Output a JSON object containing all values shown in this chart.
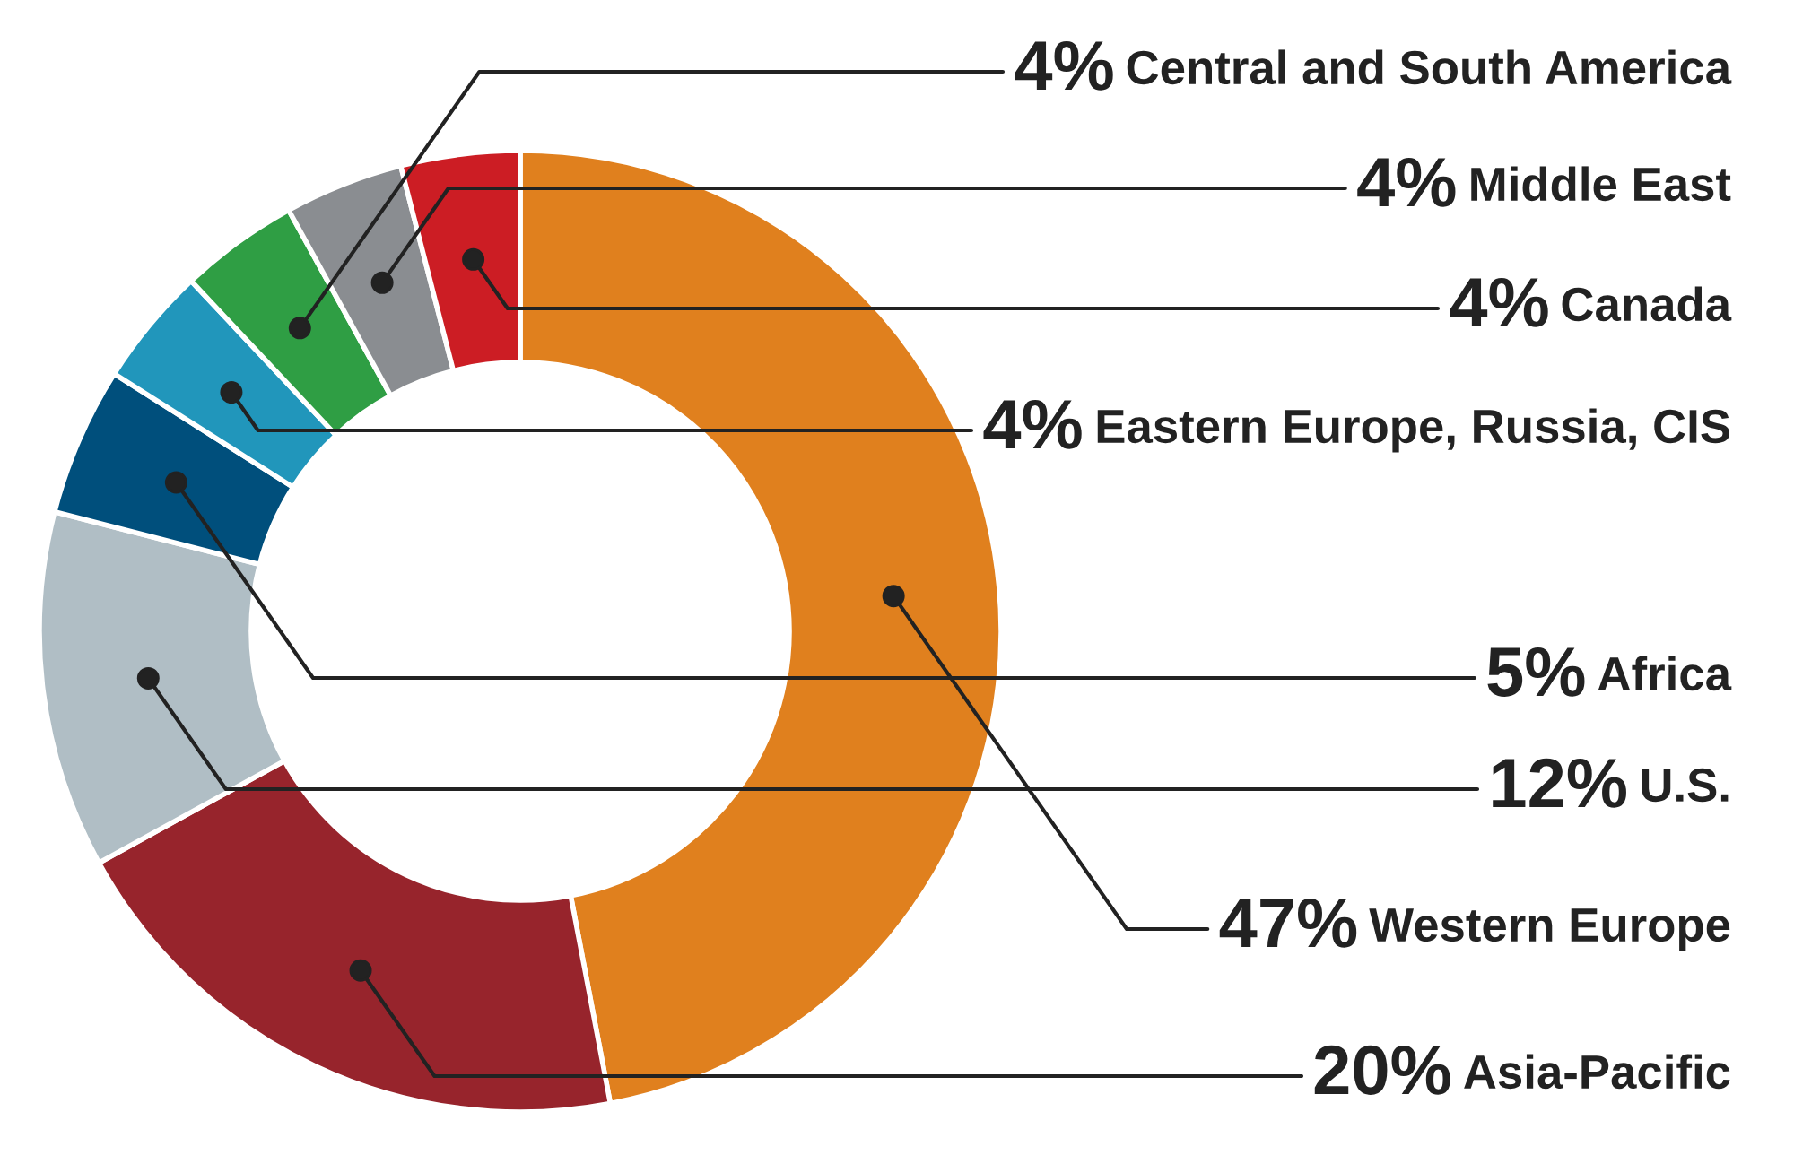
{
  "chart_data": {
    "type": "donut",
    "categories": [
      "Western Europe",
      "Asia-Pacific",
      "U.S.",
      "Africa",
      "Eastern Europe, Russia, CIS",
      "Central and South America",
      "Middle East",
      "Canada"
    ],
    "values": [
      47,
      20,
      12,
      5,
      4,
      4,
      4,
      4
    ],
    "value_labels": [
      "47%",
      "20%",
      "12%",
      "5%",
      "4%",
      "4%",
      "4%",
      "4%"
    ],
    "colors": [
      "#e0801e",
      "#97242c",
      "#b0bec5",
      "#004f7c",
      "#2196bb",
      "#2f9e44",
      "#8a8d91",
      "#cc1d24"
    ],
    "legend": false
  }
}
